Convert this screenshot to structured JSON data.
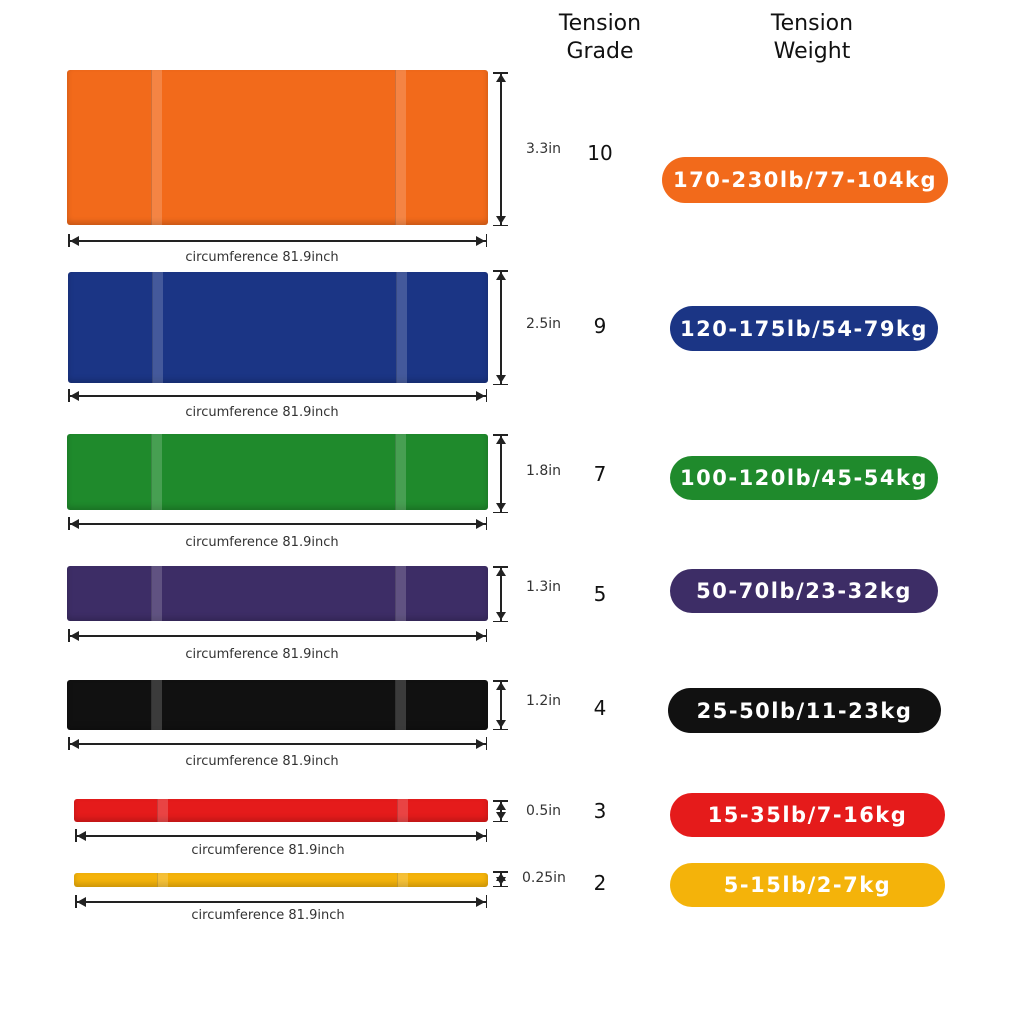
{
  "headers": {
    "grade": "Tension\nGrade",
    "weight": "Tension\nWeight"
  },
  "bands": [
    {
      "grade": "10",
      "width": "3.3in",
      "circumference": "circumference 81.9inch",
      "weight": "170-230lb/77-104kg",
      "color": "#f26a1b"
    },
    {
      "grade": "9",
      "width": "2.5in",
      "circumference": "circumference 81.9inch",
      "weight": "120-175lb/54-79kg",
      "color": "#1b3585"
    },
    {
      "grade": "7",
      "width": "1.8in",
      "circumference": "circumference 81.9inch",
      "weight": "100-120lb/45-54kg",
      "color": "#1f8a2c"
    },
    {
      "grade": "5",
      "width": "1.3in",
      "circumference": "circumference 81.9inch",
      "weight": "50-70lb/23-32kg",
      "color": "#3d2d66"
    },
    {
      "grade": "4",
      "width": "1.2in",
      "circumference": "circumference 81.9inch",
      "weight": "25-50lb/11-23kg",
      "color": "#111111"
    },
    {
      "grade": "3",
      "width": "0.5in",
      "circumference": "circumference 81.9inch",
      "weight": "15-35lb/7-16kg",
      "color": "#e51b1b"
    },
    {
      "grade": "2",
      "width": "0.25in",
      "circumference": "circumference 81.9inch",
      "weight": "5-15lb/2-7kg",
      "color": "#f4b30a"
    }
  ]
}
